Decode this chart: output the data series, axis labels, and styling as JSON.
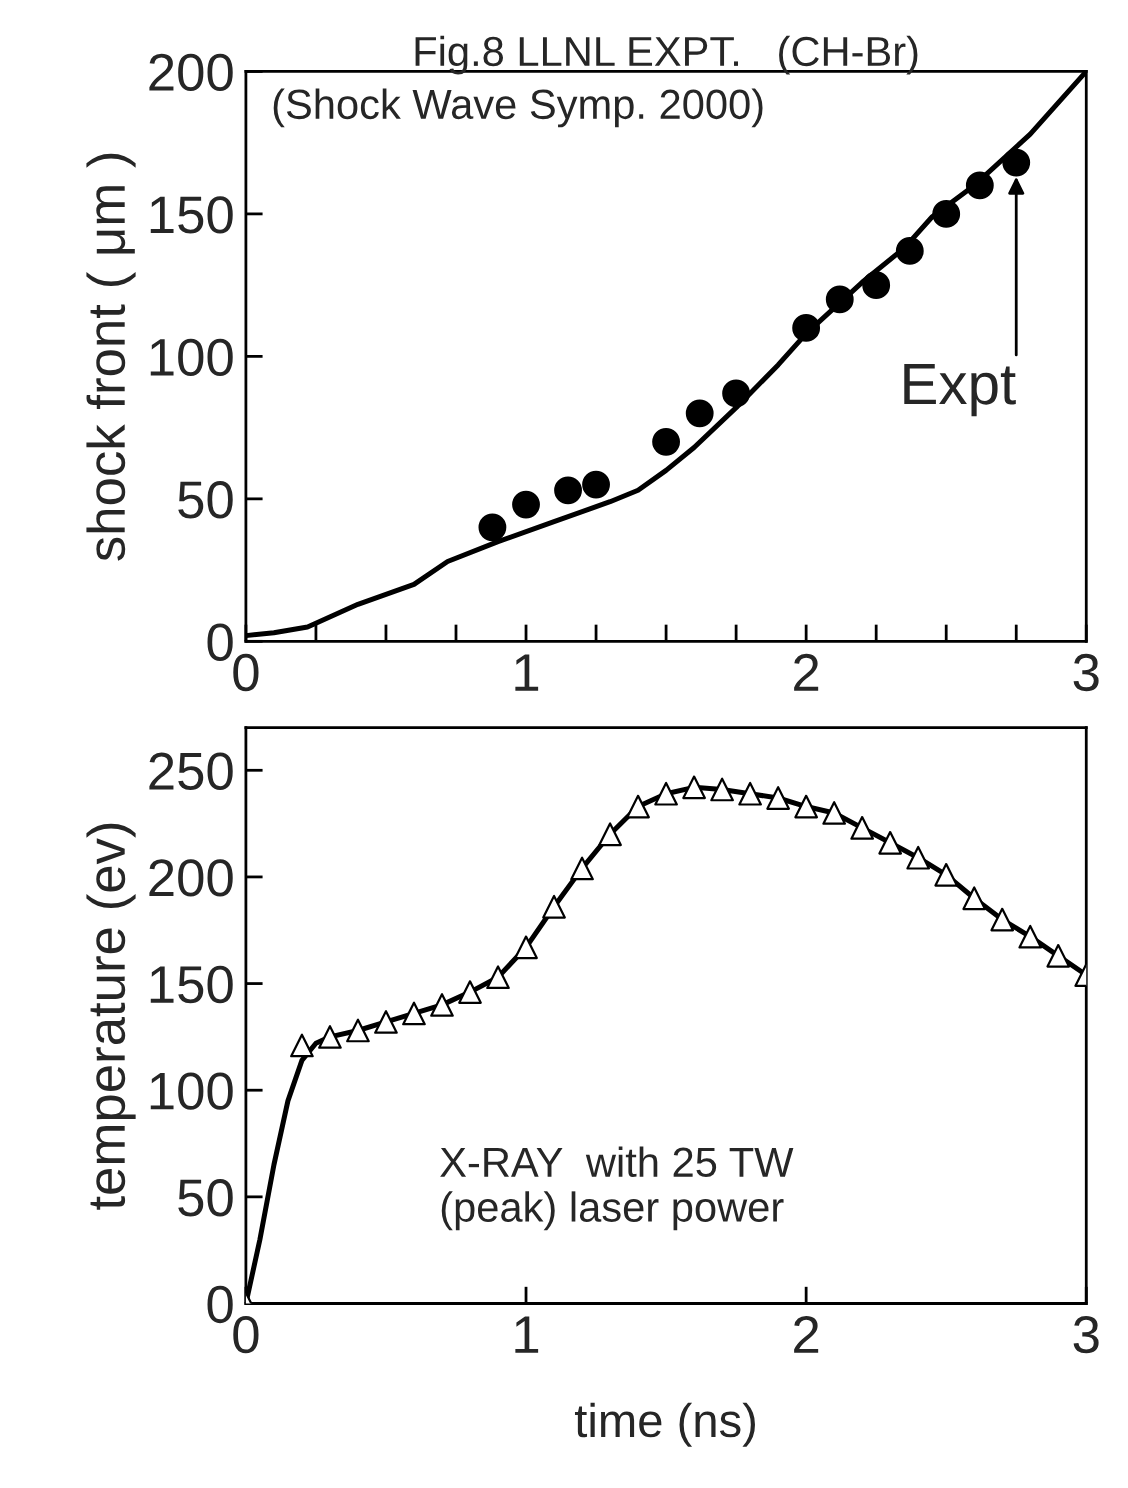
{
  "chart_data": [
    {
      "type": "scatter",
      "title": "Fig.8 LLNL EXPT.   (CH-Br)",
      "subtitle": "(Shock Wave Symp. 2000)",
      "ylabel": "shock front ( μm )",
      "series": [
        {
          "type": "line",
          "color": "#000000",
          "marker": "none",
          "x": [
            0,
            0.1,
            0.22,
            0.4,
            0.6,
            0.72,
            0.9,
            1.1,
            1.3,
            1.4,
            1.5,
            1.6,
            1.75,
            1.9,
            2.0,
            2.2,
            2.35,
            2.45,
            2.6,
            2.8,
            3.0
          ],
          "values": [
            2,
            3,
            5,
            13,
            20,
            28,
            35,
            42,
            49,
            53,
            60,
            68,
            82,
            97,
            108,
            126,
            138,
            149,
            160,
            178,
            200
          ]
        },
        {
          "color": "#000000",
          "marker": "circle",
          "x": [
            0.88,
            1.0,
            1.15,
            1.25,
            1.5,
            1.62,
            1.75,
            2.0,
            2.12,
            2.25,
            2.37,
            2.5,
            2.62,
            2.75
          ],
          "values": [
            40,
            48,
            53,
            55,
            70,
            80,
            87,
            110,
            120,
            125,
            137,
            150,
            160,
            168
          ]
        }
      ],
      "annotations": [
        {
          "text": "Expt",
          "x": 2.75,
          "y": 163
        }
      ],
      "xlim": [
        0,
        3
      ],
      "ylim": [
        0,
        200
      ],
      "xticks": [
        0,
        {
          "value": 0.25,
          "label": null
        },
        {
          "value": 0.5,
          "label": null
        },
        {
          "value": 0.75,
          "label": null
        },
        1,
        {
          "value": 1.25,
          "label": null
        },
        {
          "value": 1.5,
          "label": null
        },
        {
          "value": 1.75,
          "label": null
        },
        2,
        {
          "value": 2.25,
          "label": null
        },
        {
          "value": 2.5,
          "label": null
        },
        {
          "value": 2.75,
          "label": null
        },
        3
      ],
      "yticks": [
        0,
        50,
        100,
        150,
        200
      ]
    },
    {
      "type": "line",
      "xlabel": "time (ns)",
      "ylabel": "temperature (ev)",
      "series": [
        {
          "color": "#000000",
          "marker": "none",
          "x": [
            0,
            0.05,
            0.1,
            0.15,
            0.2,
            0.25,
            0.3,
            0.4,
            0.5,
            0.6,
            0.7,
            0.8,
            0.9,
            1.0,
            1.1,
            1.2,
            1.3,
            1.4,
            1.5,
            1.6,
            1.7,
            1.8,
            1.9,
            2.0,
            2.1,
            2.2,
            2.3,
            2.4,
            2.5,
            2.6,
            2.7,
            2.8,
            2.9,
            3.0
          ],
          "values": [
            0,
            30,
            65,
            95,
            114,
            122,
            125,
            128,
            132,
            136,
            140,
            146,
            153,
            167,
            186,
            204,
            220,
            233,
            239,
            242,
            241,
            239,
            237,
            233,
            230,
            223,
            216,
            209,
            201,
            190,
            180,
            172,
            163,
            154
          ]
        },
        {
          "type": "scatter",
          "color": "#ffffff",
          "marker": "triangle",
          "x": [
            0,
            0.2,
            0.3,
            0.4,
            0.5,
            0.6,
            0.7,
            0.8,
            0.9,
            1.0,
            1.1,
            1.2,
            1.3,
            1.4,
            1.5,
            1.6,
            1.7,
            1.8,
            1.9,
            2.0,
            2.1,
            2.2,
            2.3,
            2.4,
            2.5,
            2.6,
            2.7,
            2.8,
            2.9,
            3.0
          ],
          "values": [
            0,
            121,
            125,
            128,
            132,
            136,
            140,
            146,
            153,
            167,
            186,
            204,
            220,
            233,
            239,
            242,
            241,
            239,
            237,
            233,
            230,
            223,
            216,
            209,
            201,
            190,
            180,
            172,
            163,
            154
          ]
        }
      ],
      "annotations": [
        "X-RAY  with 25 TW\n(peak) laser power"
      ],
      "xlim": [
        0,
        3
      ],
      "ylim": [
        0,
        270
      ],
      "xticks": [
        0,
        1,
        2,
        3
      ],
      "yticks": [
        0,
        50,
        100,
        150,
        200,
        250
      ]
    }
  ]
}
